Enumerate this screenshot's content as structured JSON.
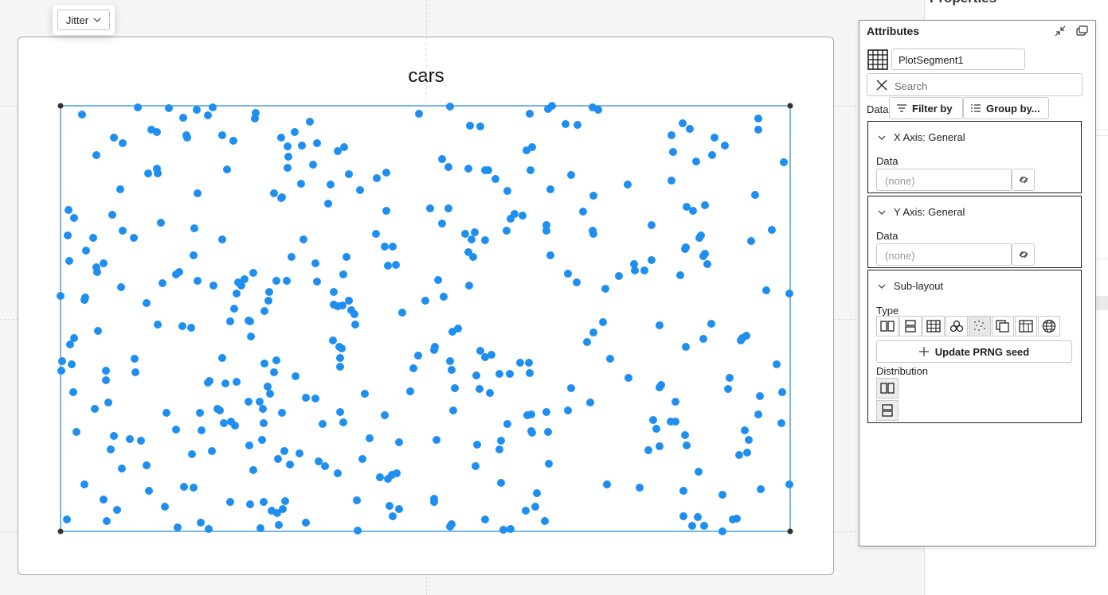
{
  "toolbar": {
    "jitter_label": "Jitter"
  },
  "right_pane": {
    "title": "Properties"
  },
  "attributes": {
    "title": "Attributes",
    "plot_segment_name": "PlotSegment1",
    "search_placeholder": "Search",
    "data_label": "Data",
    "filter_by": "Filter by",
    "group_by": "Group by...",
    "x_axis": {
      "header": "X Axis: General",
      "data_label": "Data",
      "value": "(none)"
    },
    "y_axis": {
      "header": "Y Axis: General",
      "data_label": "Data",
      "value": "(none)"
    },
    "sub_layout": {
      "header": "Sub-layout",
      "type_label": "Type",
      "types": [
        "dock-horizontal",
        "dock-vertical",
        "grid",
        "packing",
        "jitter",
        "overlap",
        "table",
        "map"
      ],
      "selected_type": "jitter",
      "update_prng": "Update PRNG seed",
      "distribution_label": "Distribution",
      "distribution": [
        "horizontal",
        "vertical"
      ]
    }
  },
  "chart_data": {
    "type": "scatter",
    "title": "cars",
    "xlabel": "",
    "ylabel": "",
    "point_color": "#1e8ff0",
    "selection_color": "#4d9de0",
    "points": [
      [
        103,
        144
      ],
      [
        173,
        135
      ],
      [
        212,
        136
      ],
      [
        230,
        148
      ],
      [
        247,
        138
      ],
      [
        261,
        145
      ],
      [
        267,
        135
      ],
      [
        321,
        142
      ],
      [
        320,
        149
      ],
      [
        526,
        143
      ],
      [
        565,
        134
      ],
      [
        590,
        158
      ],
      [
        603,
        159
      ],
      [
        665,
        143
      ],
      [
        688,
        137
      ],
      [
        693,
        133
      ],
      [
        710,
        156
      ],
      [
        725,
        157
      ],
      [
        744,
        135
      ],
      [
        751,
        138
      ],
      [
        952,
        149
      ],
      [
        952,
        163
      ],
      [
        857,
        155
      ],
      [
        866,
        162
      ],
      [
        843,
        170
      ],
      [
        897,
        173
      ],
      [
        910,
        183
      ],
      [
        190,
        163
      ],
      [
        197,
        166
      ],
      [
        234,
        170
      ],
      [
        235,
        173
      ],
      [
        279,
        170
      ],
      [
        293,
        177
      ],
      [
        353,
        173
      ],
      [
        370,
        166
      ],
      [
        389,
        153
      ],
      [
        398,
        180
      ],
      [
        379,
        183
      ],
      [
        361,
        184
      ],
      [
        362,
        197
      ],
      [
        393,
        207
      ],
      [
        424,
        190
      ],
      [
        432,
        185
      ],
      [
        143,
        173
      ],
      [
        154,
        180
      ],
      [
        121,
        195
      ],
      [
        186,
        218
      ],
      [
        197,
        212
      ],
      [
        198,
        218
      ],
      [
        285,
        213
      ],
      [
        361,
        211
      ],
      [
        378,
        231
      ],
      [
        415,
        232
      ],
      [
        438,
        219
      ],
      [
        452,
        239
      ],
      [
        473,
        224
      ],
      [
        485,
        217
      ],
      [
        555,
        200
      ],
      [
        563,
        210
      ],
      [
        588,
        212
      ],
      [
        609,
        214
      ],
      [
        613,
        214
      ],
      [
        622,
        225
      ],
      [
        637,
        240
      ],
      [
        661,
        189
      ],
      [
        668,
        185
      ],
      [
        666,
        214
      ],
      [
        691,
        238
      ],
      [
        717,
        220
      ],
      [
        745,
        246
      ],
      [
        788,
        232
      ],
      [
        845,
        191
      ],
      [
        843,
        227
      ],
      [
        874,
        203
      ],
      [
        894,
        195
      ],
      [
        984,
        204
      ],
      [
        151,
        238
      ],
      [
        248,
        243
      ],
      [
        344,
        243
      ],
      [
        354,
        248
      ],
      [
        353,
        249
      ],
      [
        412,
        256
      ],
      [
        948,
        245
      ],
      [
        86,
        264
      ],
      [
        93,
        274
      ],
      [
        85,
        296
      ],
      [
        117,
        299
      ],
      [
        141,
        270
      ],
      [
        154,
        290
      ],
      [
        168,
        299
      ],
      [
        202,
        280
      ],
      [
        244,
        287
      ],
      [
        279,
        301
      ],
      [
        381,
        301
      ],
      [
        472,
        294
      ],
      [
        485,
        265
      ],
      [
        540,
        262
      ],
      [
        555,
        281
      ],
      [
        563,
        262
      ],
      [
        584,
        294
      ],
      [
        596,
        292
      ],
      [
        592,
        301
      ],
      [
        609,
        302
      ],
      [
        636,
        290
      ],
      [
        641,
        275
      ],
      [
        646,
        269
      ],
      [
        656,
        271
      ],
      [
        686,
        283
      ],
      [
        686,
        290
      ],
      [
        732,
        266
      ],
      [
        744,
        290
      ],
      [
        745,
        294
      ],
      [
        818,
        283
      ],
      [
        862,
        260
      ],
      [
        870,
        265
      ],
      [
        885,
        258
      ],
      [
        878,
        299
      ],
      [
        880,
        296
      ],
      [
        943,
        303
      ],
      [
        969,
        289
      ],
      [
        483,
        310
      ],
      [
        493,
        310
      ],
      [
        87,
        328
      ],
      [
        108,
        315
      ],
      [
        121,
        336
      ],
      [
        122,
        342
      ],
      [
        130,
        331
      ],
      [
        243,
        321
      ],
      [
        225,
        342
      ],
      [
        221,
        345
      ],
      [
        366,
        323
      ],
      [
        396,
        331
      ],
      [
        435,
        323
      ],
      [
        487,
        334
      ],
      [
        497,
        333
      ],
      [
        588,
        317
      ],
      [
        594,
        323
      ],
      [
        691,
        321
      ],
      [
        796,
        332
      ],
      [
        797,
        340
      ],
      [
        818,
        327
      ],
      [
        860,
        313
      ],
      [
        861,
        311
      ],
      [
        883,
        322
      ],
      [
        888,
        332
      ],
      [
        885,
        319
      ],
      [
        152,
        361
      ],
      [
        184,
        381
      ],
      [
        204,
        356
      ],
      [
        248,
        353
      ],
      [
        268,
        359
      ],
      [
        299,
        355
      ],
      [
        307,
        351
      ],
      [
        303,
        359
      ],
      [
        318,
        343
      ],
      [
        297,
        369
      ],
      [
        338,
        367
      ],
      [
        347,
        353
      ],
      [
        360,
        353
      ],
      [
        398,
        354
      ],
      [
        431,
        345
      ],
      [
        419,
        367
      ],
      [
        550,
        352
      ],
      [
        589,
        359
      ],
      [
        713,
        344
      ],
      [
        724,
        355
      ],
      [
        760,
        363
      ],
      [
        777,
        347
      ],
      [
        809,
        340
      ],
      [
        854,
        346
      ],
      [
        962,
        365
      ],
      [
        107,
        374
      ],
      [
        106,
        377
      ],
      [
        76,
        372
      ],
      [
        991,
        369
      ],
      [
        294,
        388
      ],
      [
        332,
        391
      ],
      [
        337,
        378
      ],
      [
        419,
        383
      ],
      [
        424,
        385
      ],
      [
        430,
        384
      ],
      [
        438,
        378
      ],
      [
        441,
        390
      ],
      [
        445,
        395
      ],
      [
        505,
        393
      ],
      [
        534,
        378
      ],
      [
        557,
        373
      ],
      [
        446,
        408
      ],
      [
        289,
        404
      ],
      [
        312,
        403
      ],
      [
        314,
        404
      ],
      [
        229,
        410
      ],
      [
        240,
        412
      ],
      [
        198,
        408
      ],
      [
        123,
        416
      ],
      [
        575,
        413
      ],
      [
        568,
        417
      ],
      [
        745,
        418
      ],
      [
        757,
        405
      ],
      [
        828,
        409
      ],
      [
        893,
        407
      ],
      [
        88,
        433
      ],
      [
        93,
        425
      ],
      [
        315,
        423
      ],
      [
        418,
        428
      ],
      [
        429,
        438
      ],
      [
        426,
        436
      ],
      [
        525,
        447
      ],
      [
        545,
        440
      ],
      [
        546,
        436
      ],
      [
        603,
        441
      ],
      [
        609,
        449
      ],
      [
        617,
        446
      ],
      [
        737,
        430
      ],
      [
        861,
        436
      ],
      [
        883,
        426
      ],
      [
        930,
        428
      ],
      [
        937,
        422
      ],
      [
        932,
        425
      ],
      [
        78,
        454
      ],
      [
        90,
        458
      ],
      [
        77,
        466
      ],
      [
        169,
        451
      ],
      [
        170,
        468
      ],
      [
        133,
        466
      ],
      [
        133,
        478
      ],
      [
        279,
        450
      ],
      [
        263,
        479
      ],
      [
        261,
        481
      ],
      [
        283,
        482
      ],
      [
        297,
        480
      ],
      [
        332,
        457
      ],
      [
        347,
        453
      ],
      [
        344,
        468
      ],
      [
        427,
        450
      ],
      [
        427,
        461
      ],
      [
        371,
        473
      ],
      [
        519,
        463
      ],
      [
        565,
        454
      ],
      [
        567,
        465
      ],
      [
        598,
        472
      ],
      [
        627,
        470
      ],
      [
        653,
        456
      ],
      [
        640,
        470
      ],
      [
        664,
        456
      ],
      [
        665,
        469
      ],
      [
        717,
        488
      ],
      [
        766,
        451
      ],
      [
        789,
        475
      ],
      [
        828,
        487
      ],
      [
        830,
        484
      ],
      [
        848,
        505
      ],
      [
        916,
        475
      ],
      [
        914,
        489
      ],
      [
        954,
        498
      ],
      [
        982,
        493
      ],
      [
        975,
        458
      ],
      [
        92,
        493
      ],
      [
        136,
        506
      ],
      [
        119,
        514
      ],
      [
        209,
        519
      ],
      [
        251,
        519
      ],
      [
        273,
        514
      ],
      [
        276,
        516
      ],
      [
        312,
        505
      ],
      [
        336,
        486
      ],
      [
        326,
        505
      ],
      [
        330,
        514
      ],
      [
        339,
        495
      ],
      [
        354,
        519
      ],
      [
        384,
        500
      ],
      [
        396,
        501
      ],
      [
        405,
        533
      ],
      [
        427,
        518
      ],
      [
        458,
        495
      ],
      [
        483,
        522
      ],
      [
        515,
        492
      ],
      [
        571,
        488
      ],
      [
        569,
        516
      ],
      [
        602,
        489
      ],
      [
        615,
        494
      ],
      [
        637,
        533
      ],
      [
        667,
        521
      ],
      [
        662,
        522
      ],
      [
        686,
        518
      ],
      [
        741,
        506
      ],
      [
        713,
        516
      ],
      [
        820,
        528
      ],
      [
        848,
        530
      ],
      [
        824,
        539
      ],
      [
        842,
        530
      ],
      [
        952,
        521
      ],
      [
        981,
        532
      ],
      [
        96,
        543
      ],
      [
        143,
        548
      ],
      [
        163,
        552
      ],
      [
        177,
        554
      ],
      [
        221,
        540
      ],
      [
        253,
        541
      ],
      [
        281,
        532
      ],
      [
        290,
        530
      ],
      [
        295,
        535
      ],
      [
        331,
        532
      ],
      [
        329,
        553
      ],
      [
        431,
        531
      ],
      [
        464,
        551
      ],
      [
        501,
        556
      ],
      [
        548,
        553
      ],
      [
        599,
        559
      ],
      [
        629,
        554
      ],
      [
        667,
        542
      ],
      [
        668,
        544
      ],
      [
        688,
        543
      ],
      [
        814,
        566
      ],
      [
        828,
        561
      ],
      [
        860,
        547
      ],
      [
        862,
        560
      ],
      [
        935,
        541
      ],
      [
        940,
        553
      ],
      [
        928,
        572
      ],
      [
        938,
        569
      ],
      [
        139,
        565
      ],
      [
        184,
        585
      ],
      [
        187,
        617
      ],
      [
        241,
        571
      ],
      [
        266,
        567
      ],
      [
        313,
        560
      ],
      [
        357,
        567
      ],
      [
        376,
        570
      ],
      [
        349,
        577
      ],
      [
        364,
        584
      ],
      [
        400,
        580
      ],
      [
        408,
        586
      ],
      [
        424,
        595
      ],
      [
        455,
        577
      ],
      [
        487,
        602
      ],
      [
        492,
        597
      ],
      [
        498,
        595
      ],
      [
        597,
        586
      ],
      [
        627,
        565
      ],
      [
        689,
        583
      ],
      [
        153,
        589
      ],
      [
        106,
        609
      ],
      [
        231,
        612
      ],
      [
        318,
        591
      ],
      [
        477,
        600
      ],
      [
        629,
        607
      ],
      [
        762,
        609
      ],
      [
        803,
        613
      ],
      [
        877,
        593
      ],
      [
        991,
        609
      ],
      [
        955,
        615
      ],
      [
        130,
        628
      ],
      [
        147,
        641
      ],
      [
        207,
        637
      ],
      [
        243,
        613
      ],
      [
        289,
        631
      ],
      [
        314,
        634
      ],
      [
        331,
        631
      ],
      [
        341,
        642
      ],
      [
        358,
        630
      ],
      [
        448,
        629
      ],
      [
        489,
        636
      ],
      [
        501,
        640
      ],
      [
        545,
        627
      ],
      [
        545,
        631
      ],
      [
        674,
        620
      ],
      [
        672,
        637
      ],
      [
        660,
        642
      ],
      [
        858,
        617
      ],
      [
        907,
        622
      ],
      [
        84,
        653
      ],
      [
        134,
        655
      ],
      [
        223,
        663
      ],
      [
        252,
        657
      ],
      [
        262,
        665
      ],
      [
        327,
        664
      ],
      [
        350,
        660
      ],
      [
        355,
        640
      ],
      [
        348,
        645
      ],
      [
        384,
        657
      ],
      [
        449,
        667
      ],
      [
        493,
        649
      ],
      [
        567,
        659
      ],
      [
        565,
        662
      ],
      [
        609,
        653
      ],
      [
        632,
        666
      ],
      [
        641,
        665
      ],
      [
        684,
        655
      ],
      [
        858,
        649
      ],
      [
        869,
        661
      ],
      [
        876,
        650
      ],
      [
        884,
        661
      ],
      [
        907,
        668
      ],
      [
        920,
        653
      ],
      [
        925,
        652
      ]
    ]
  }
}
